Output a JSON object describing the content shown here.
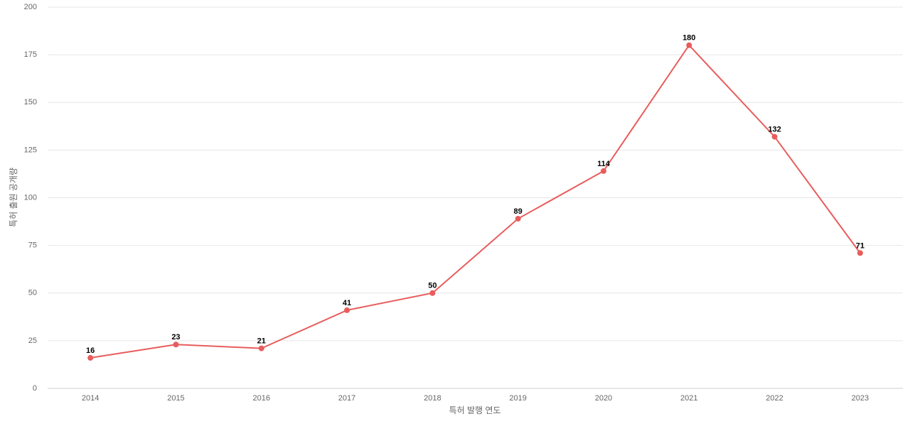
{
  "chart_data": {
    "type": "line",
    "x_label": "특허 발행 연도",
    "y_label": "특허 출원 공개량",
    "categories": [
      "2014",
      "2015",
      "2016",
      "2017",
      "2018",
      "2019",
      "2020",
      "2021",
      "2022",
      "2023"
    ],
    "series": [
      {
        "name": "특허 출원 공개량",
        "color": "#e85c5c",
        "values": [
          16,
          23,
          21,
          41,
          50,
          89,
          114,
          180,
          132,
          71
        ]
      }
    ],
    "ylim": [
      0,
      200
    ],
    "yticks": [
      0,
      25,
      50,
      75,
      100,
      125,
      150,
      175,
      200
    ],
    "grid": true
  }
}
